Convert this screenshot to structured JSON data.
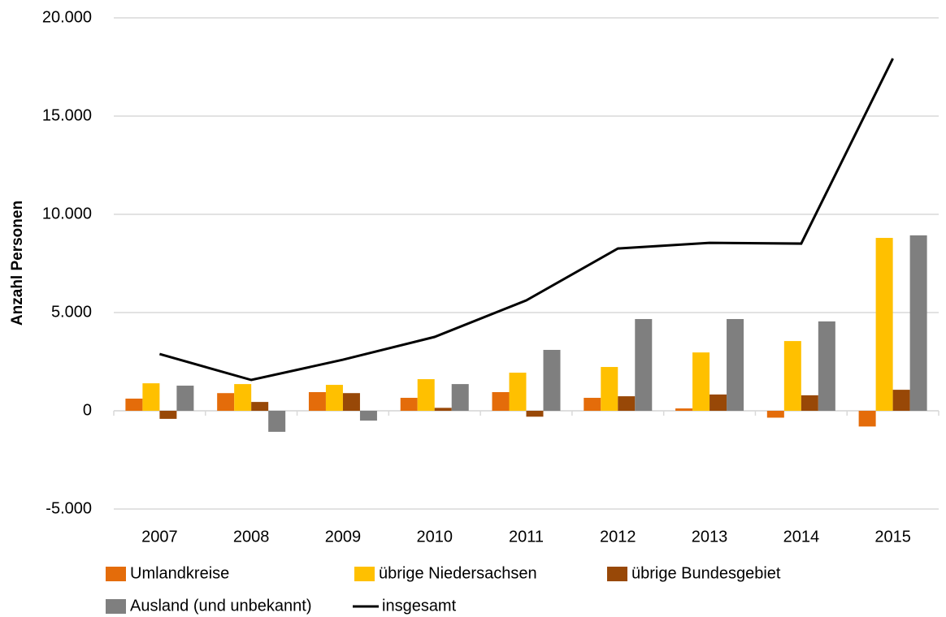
{
  "chart_data": {
    "type": "bar",
    "ylabel": "Anzahl Personen",
    "categories": [
      "2007",
      "2008",
      "2009",
      "2010",
      "2011",
      "2012",
      "2013",
      "2014",
      "2015"
    ],
    "series": [
      {
        "name": "Umlandkreise",
        "color": "#e46c0a",
        "values": [
          620,
          900,
          950,
          660,
          950,
          660,
          120,
          -350,
          -800
        ]
      },
      {
        "name": "übrige Niedersachsen",
        "color": "#ffc000",
        "values": [
          1400,
          1360,
          1320,
          1610,
          1940,
          2230,
          2970,
          3550,
          8800
        ]
      },
      {
        "name": "übrige Bundesgebiet",
        "color": "#984807",
        "values": [
          -410,
          450,
          900,
          150,
          -300,
          740,
          830,
          790,
          1070
        ]
      },
      {
        "name": "Ausland (und unbekannt)",
        "color": "#7f7f7f",
        "values": [
          1280,
          -1070,
          -500,
          1360,
          3100,
          4670,
          4670,
          4550,
          8930
        ]
      },
      {
        "name": "insgesamt",
        "color": "#000000",
        "type": "line",
        "values": [
          2890,
          1570,
          2600,
          3760,
          5620,
          8260,
          8550,
          8510,
          17930
        ]
      }
    ],
    "ylim": [
      -5000,
      20000
    ],
    "yticks": [
      {
        "value": -5000,
        "label": "-5.000"
      },
      0,
      {
        "value": 5000,
        "label": "5.000"
      },
      {
        "value": 10000,
        "label": "10.000"
      },
      {
        "value": 15000,
        "label": "15.000"
      },
      {
        "value": 20000,
        "label": "20.000"
      }
    ],
    "grid": true,
    "legend": "bottom"
  }
}
